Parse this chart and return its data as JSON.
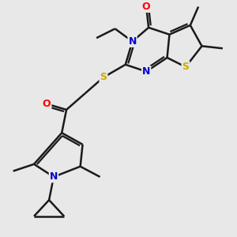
{
  "background_color": "#e8e8e8",
  "atom_colors": {
    "N": "#0000cc",
    "O": "#ff0000",
    "S": "#ccaa00"
  },
  "bond_color": "#1a1a1a",
  "bond_width": 1.8,
  "figsize": [
    3.0,
    3.0
  ],
  "dpi": 100
}
